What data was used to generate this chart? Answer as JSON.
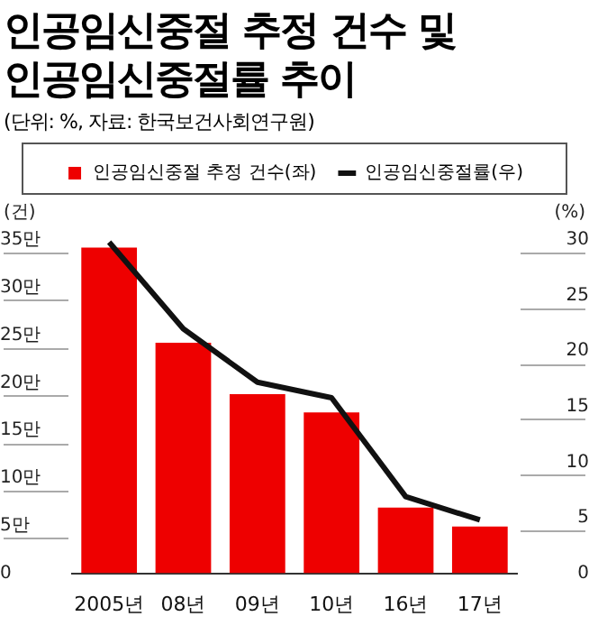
{
  "chart_data": {
    "type": "bar",
    "title": "인공임신중절 추정 건수 및 인공임신중절률 추이",
    "subtitle": "(단위: %, 자료: 한국보건사회연구원)",
    "ylabel": "(건)",
    "y2label": "(%)",
    "categories": [
      "2005년",
      "08년",
      "09년",
      "10년",
      "16년",
      "17년"
    ],
    "series": [
      {
        "name": "인공임신중절 추정 건수(좌)",
        "color": "#ee0000",
        "values": [
          34.2,
          24.2,
          18.8,
          16.9,
          6.9,
          4.9
        ]
      },
      {
        "name": "인공임신중절률(우)",
        "type": "line",
        "axis": "y2",
        "color": "#111111",
        "values": [
          29.8,
          22.0,
          17.2,
          15.8,
          6.9,
          4.8
        ]
      }
    ],
    "ylim": [
      0,
      35
    ],
    "yticks": [
      0,
      {
        "value": 5,
        "label": "5만"
      },
      {
        "value": 10,
        "label": "10만"
      },
      {
        "value": 15,
        "label": "15만"
      },
      {
        "value": 20,
        "label": "20만"
      },
      {
        "value": 25,
        "label": "25만"
      },
      {
        "value": 30,
        "label": "30만"
      },
      {
        "value": 35,
        "label": "35만"
      }
    ],
    "y2lim": [
      0,
      30
    ],
    "y2ticks": [
      0,
      5,
      10,
      15,
      20,
      25,
      30
    ],
    "legend": "top",
    "marker": "none",
    "grid": false
  }
}
